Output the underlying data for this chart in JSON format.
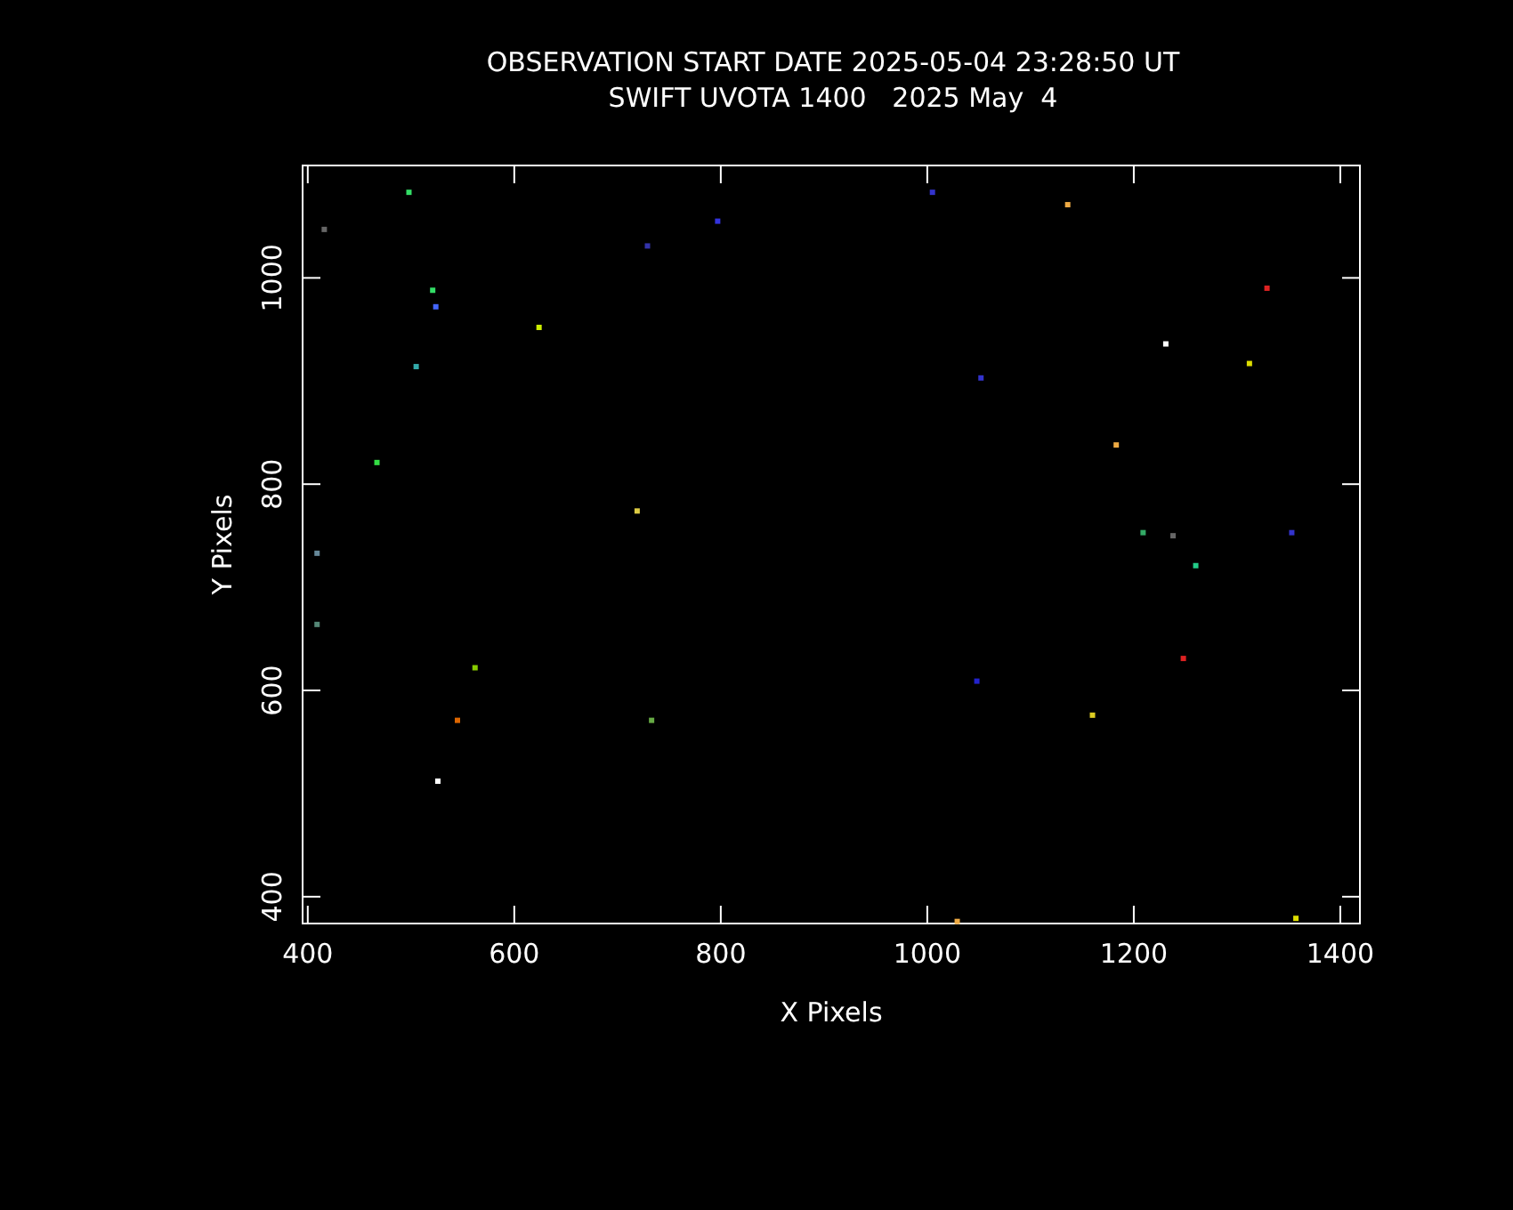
{
  "chart_data": {
    "type": "scatter",
    "title": "OBSERVATION START DATE 2025-05-04 23:28:50 UT",
    "subtitle": "SWIFT UVOTA 1400   2025 May  4",
    "xlabel": "X Pixels",
    "ylabel": "Y Pixels",
    "xlim": [
      395,
      1419
    ],
    "ylim": [
      374,
      1109
    ],
    "xticks": [
      400,
      600,
      800,
      1000,
      1200,
      1400
    ],
    "yticks": [
      400,
      600,
      800,
      1000
    ],
    "marker": "square",
    "x": [
      498,
      416,
      729,
      797,
      521,
      524,
      624,
      505,
      467,
      719,
      1005,
      1136,
      1329,
      1231,
      1312,
      1052,
      1183,
      1209,
      1238,
      1353,
      409,
      409,
      562,
      545,
      733,
      526,
      1260,
      1248,
      1048,
      1160,
      1029,
      1357
    ],
    "values": [
      1083,
      1047,
      1031,
      1055,
      988,
      972,
      952,
      914,
      821,
      774,
      1083,
      1071,
      990,
      936,
      917,
      903,
      838,
      753,
      750,
      753,
      733,
      664,
      622,
      571,
      571,
      512,
      721,
      631,
      609,
      576,
      376,
      379
    ],
    "colors": [
      "#33dd66",
      "#666666",
      "#3333aa",
      "#3333dd",
      "#33dd66",
      "#4466ff",
      "#ccee00",
      "#33aaaa",
      "#33dd44",
      "#ddcc44",
      "#3333cc",
      "#eeaa44",
      "#dd2222",
      "#ffffff",
      "#dddd00",
      "#3333cc",
      "#eeaa44",
      "#33aa66",
      "#666666",
      "#3333cc",
      "#668899",
      "#558877",
      "#88cc00",
      "#dd6600",
      "#66aa44",
      "#ffffff",
      "#22cc88",
      "#dd2222",
      "#2222cc",
      "#ddcc22",
      "#eeaa44",
      "#dddd00"
    ]
  }
}
